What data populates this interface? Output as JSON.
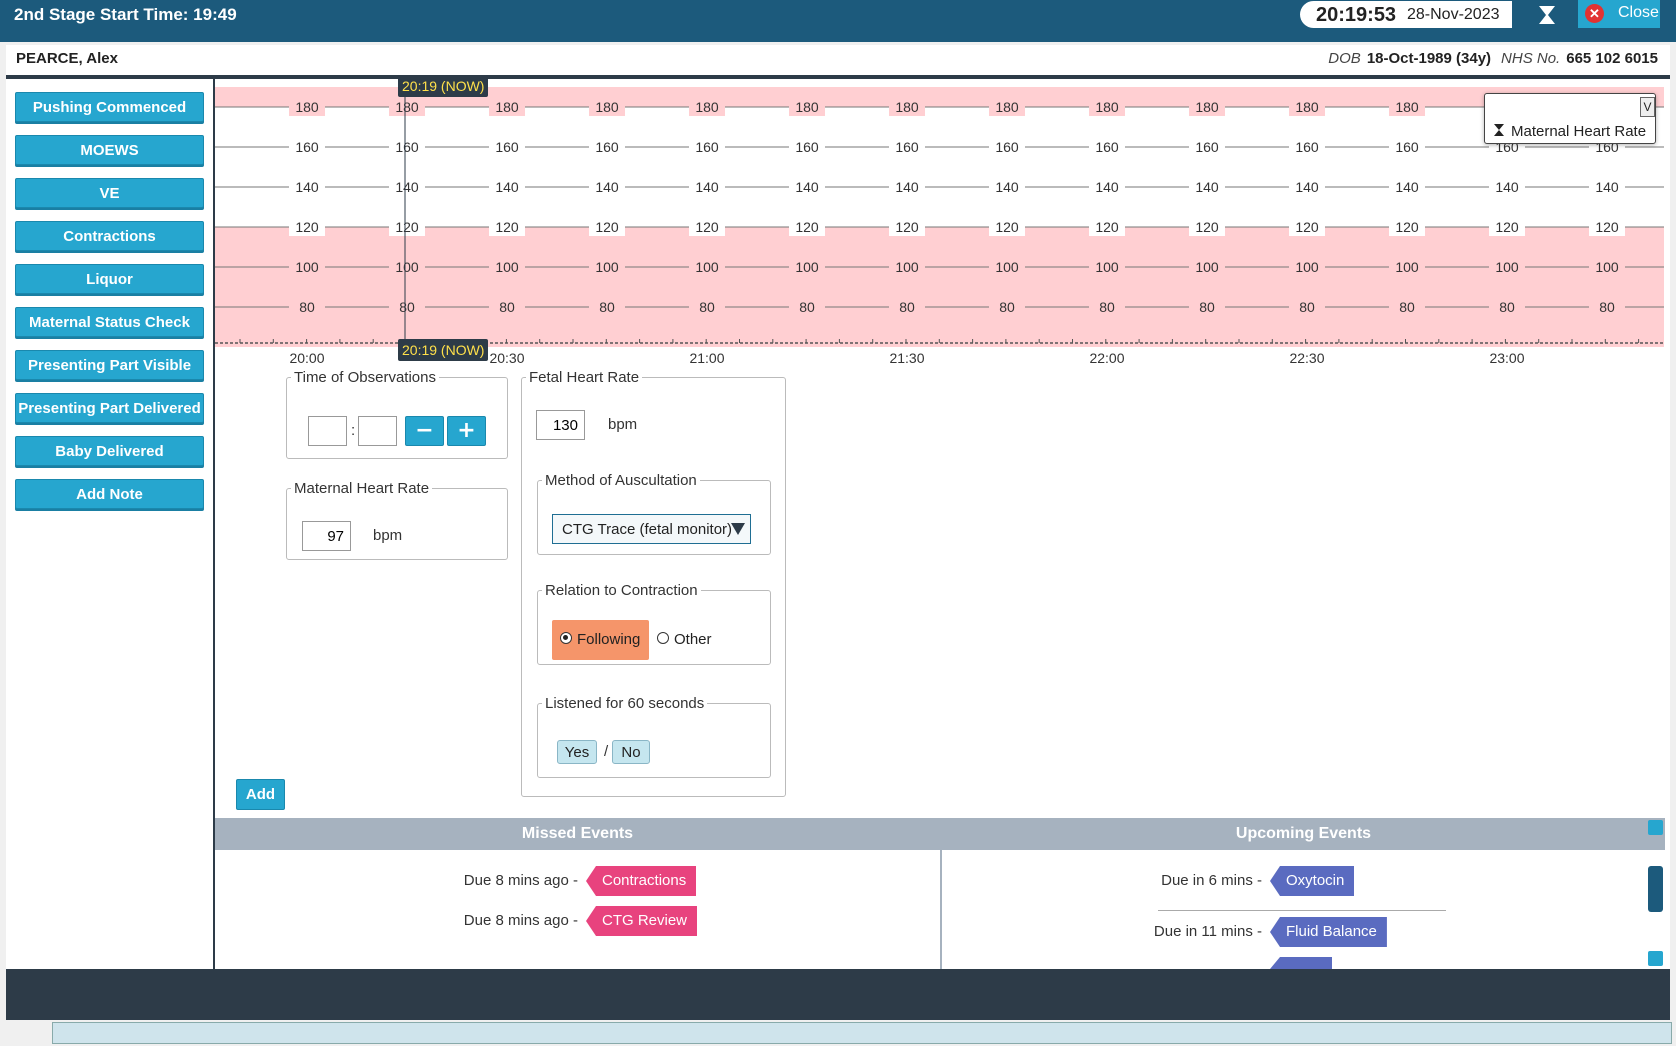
{
  "header": {
    "stage_title": "2nd Stage Start Time: 19:49",
    "clock_time": "20:19:53",
    "clock_date": "28-Nov-2023",
    "close_label": "Close"
  },
  "patient": {
    "name": "PEARCE, Alex",
    "dob_label": "DOB",
    "dob_value": "18-Oct-1989 (34y)",
    "nhs_label": "NHS No.",
    "nhs_value": "665 102 6015"
  },
  "sidebar": {
    "items": [
      {
        "label": "Pushing Commenced"
      },
      {
        "label": "MOEWS"
      },
      {
        "label": "VE"
      },
      {
        "label": "Contractions"
      },
      {
        "label": "Liquor"
      },
      {
        "label": "Maternal Status Check"
      },
      {
        "label": "Presenting Part Visible"
      },
      {
        "label": "Presenting Part Delivered"
      },
      {
        "label": "Baby Delivered"
      },
      {
        "label": "Add Note"
      }
    ]
  },
  "chart": {
    "now_label": "20:19 (NOW)",
    "legend_label": "Maternal Heart Rate",
    "legend_toggle": "V",
    "y_ticks": [
      "180",
      "160",
      "140",
      "120",
      "100",
      "80"
    ],
    "x_ticks": [
      "20:00",
      "20:30",
      "21:00",
      "21:30",
      "22:00",
      "22:30",
      "23:00"
    ],
    "colors": {
      "abnormal_band": "#ffcfd2",
      "normal_band": "#ffffff"
    }
  },
  "form": {
    "time_legend": "Time of Observations",
    "time_hour": "",
    "time_minute": "",
    "time_separator": ":",
    "minus": "−",
    "plus": "+",
    "maternal_hr_legend": "Maternal Heart Rate",
    "maternal_hr_value": "97",
    "maternal_hr_unit": "bpm",
    "fetal_hr_legend": "Fetal Heart Rate",
    "fetal_hr_value": "130",
    "fetal_hr_unit": "bpm",
    "auscultation_legend": "Method of Auscultation",
    "auscultation_value": "CTG Trace (fetal monitor)",
    "relation_legend": "Relation to Contraction",
    "relation_options": [
      {
        "label": "Following",
        "selected": true
      },
      {
        "label": "Other",
        "selected": false
      }
    ],
    "listened_legend": "Listened for 60 seconds",
    "yes_label": "Yes",
    "slash": "/",
    "no_label": "No",
    "add_label": "Add"
  },
  "events": {
    "missed_title": "Missed Events",
    "upcoming_title": "Upcoming Events",
    "missed": [
      {
        "due": "Due 8 mins ago -",
        "name": "Contractions"
      },
      {
        "due": "Due 8 mins ago -",
        "name": "CTG Review"
      }
    ],
    "upcoming": [
      {
        "due": "Due in 6 mins -",
        "name": "Oxytocin"
      },
      {
        "due": "Due in 11 mins -",
        "name": "Fluid Balance"
      }
    ],
    "colors": {
      "missed_tag": "#e8437e",
      "upcoming_tag": "#5a6bc0"
    }
  }
}
